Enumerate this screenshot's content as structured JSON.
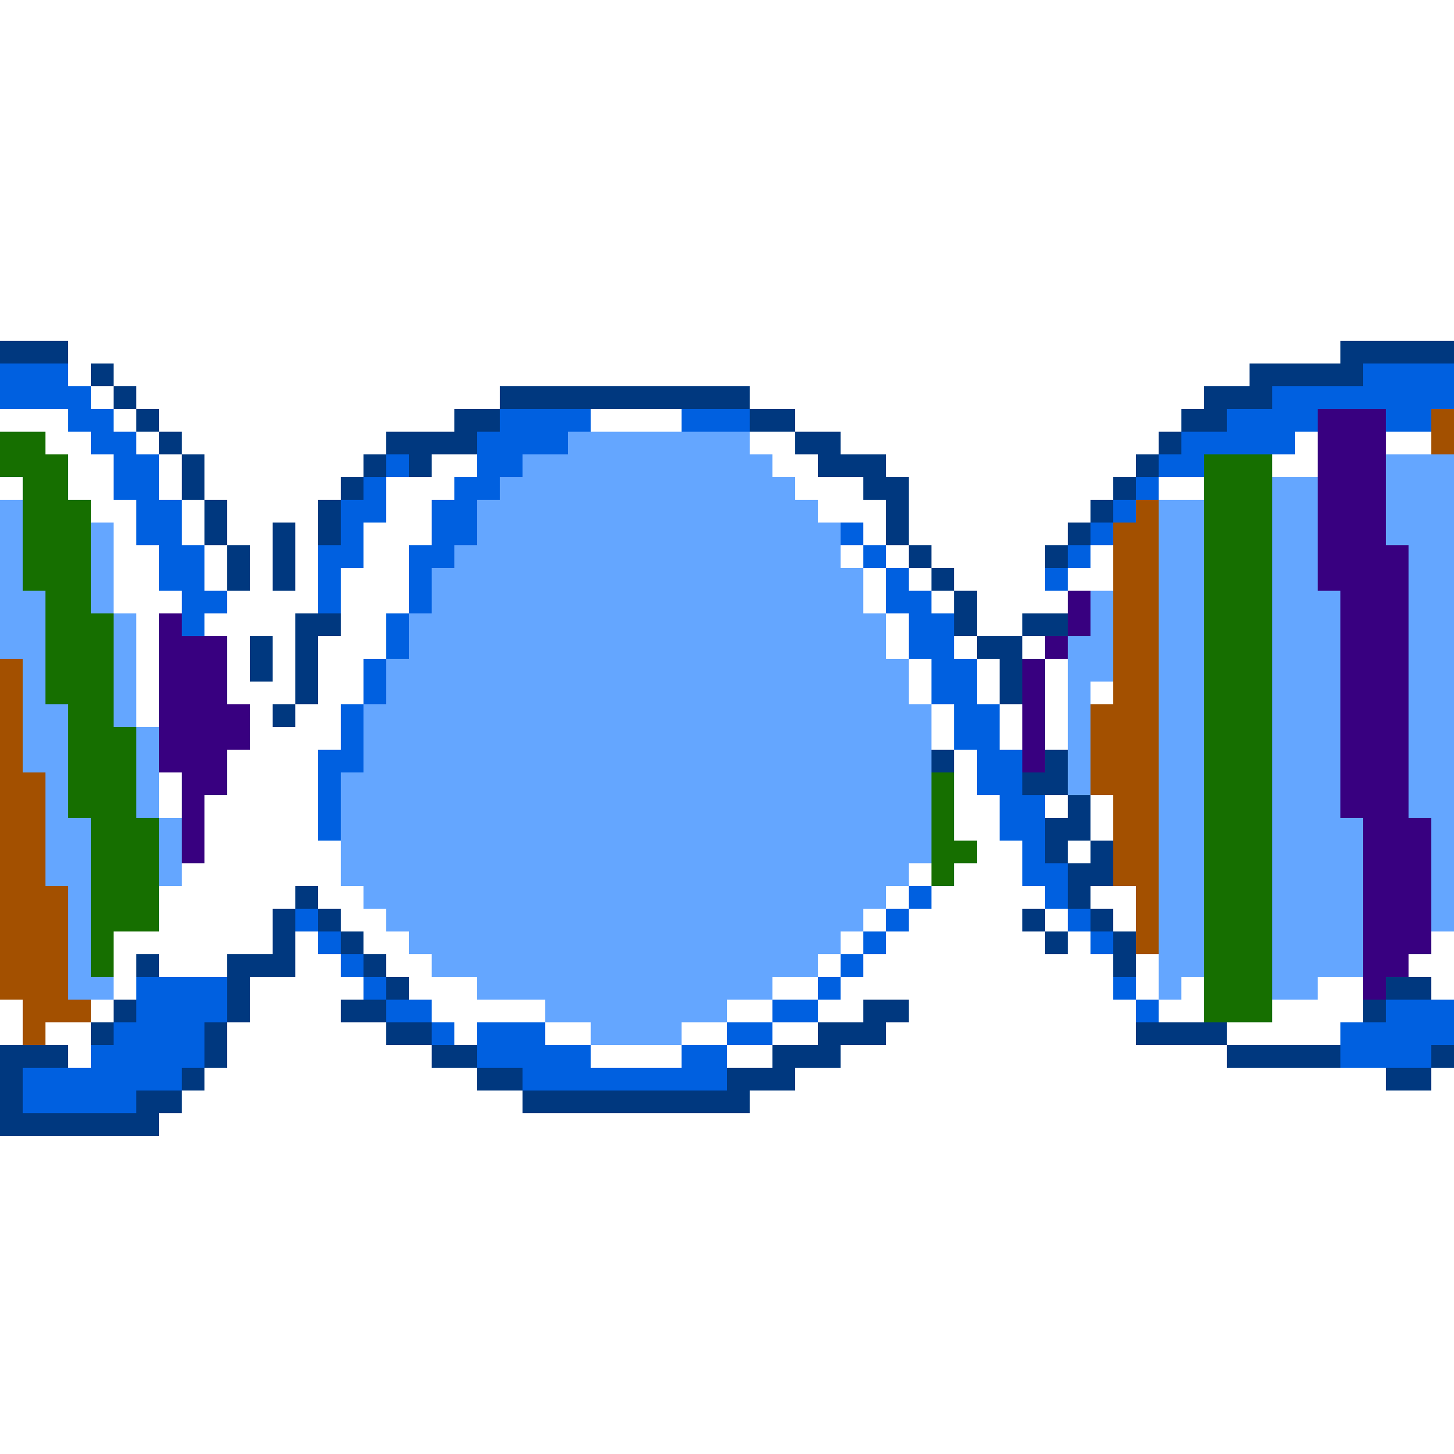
{
  "image": {
    "subject": "pixel-art-dna-helix-pattern",
    "background_color": "#FFFFFF"
  },
  "palette": {
    "outline": "#00387F",
    "mid_blue": "#0060E0",
    "light_blue": "#64A6FF",
    "green": "#166F00",
    "purple": "#380080",
    "orange": "#A35000"
  }
}
